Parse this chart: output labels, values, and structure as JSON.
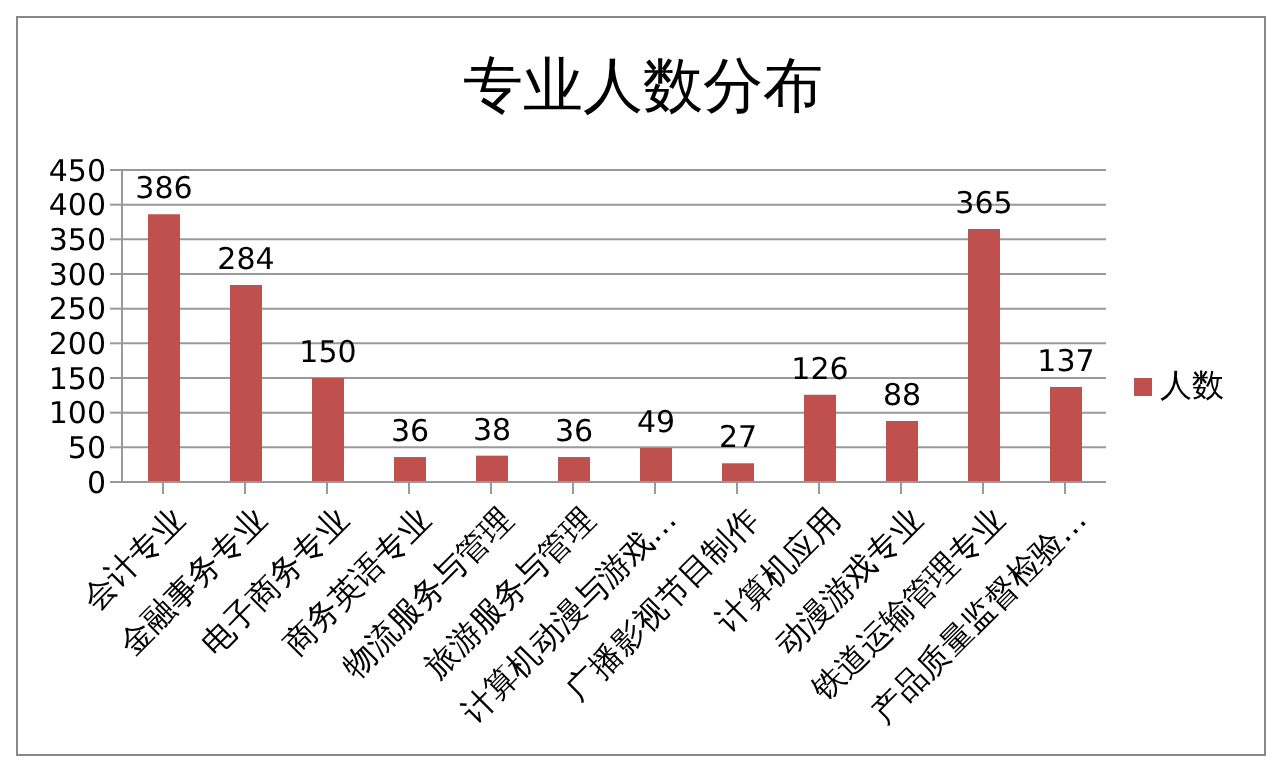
{
  "chart_data": {
    "type": "bar",
    "title": "专业人数分布",
    "categories": [
      "会计专业",
      "金融事务专业",
      "电子商务专业",
      "商务英语专业",
      "物流服务与管理",
      "旅游服务与管理",
      "计算机动漫与游戏…",
      "广播影视节目制作",
      "计算机应用",
      "动漫游戏专业",
      "铁道运输管理专业",
      "产品质量监督检验…"
    ],
    "series": [
      {
        "name": "人数",
        "color": "#c0504d",
        "values": [
          386,
          284,
          150,
          36,
          38,
          36,
          49,
          27,
          126,
          88,
          365,
          137
        ]
      }
    ],
    "ylim": [
      0,
      450
    ],
    "yticks": [
      0,
      50,
      100,
      150,
      200,
      250,
      300,
      350,
      400,
      450
    ],
    "grid": "y",
    "legend": "right",
    "data_labels": true
  }
}
